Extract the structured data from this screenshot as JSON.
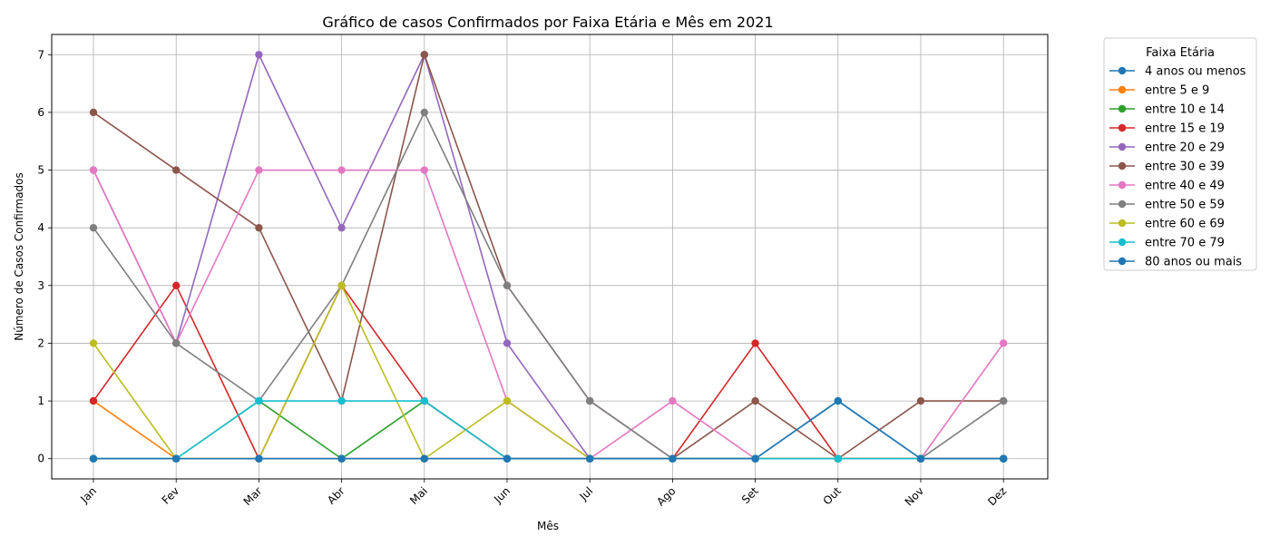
{
  "chart_data": {
    "type": "line",
    "title": "Gráfico de casos Confirmados por Faixa Etária e Mês em 2021",
    "xlabel": "Mês",
    "ylabel": "Número de Casos Confirmados",
    "ylim": [
      -0.35,
      7.35
    ],
    "yticks": [
      "0",
      "1",
      "2",
      "3",
      "4",
      "5",
      "6",
      "7"
    ],
    "grid": true,
    "legend_title": "Faixa Etária",
    "legend_position": "outside-top-right",
    "categories": [
      "Jan",
      "Fev",
      "Mar",
      "Abr",
      "Mai",
      "Jun",
      "Jul",
      "Ago",
      "Set",
      "Out",
      "Nov",
      "Dez"
    ],
    "series": [
      {
        "name": "4 anos ou menos",
        "color": "#1f77b4",
        "values": [
          0,
          0,
          0,
          0,
          0,
          0,
          0,
          0,
          0,
          1,
          0,
          0
        ]
      },
      {
        "name": "entre 5 e 9",
        "color": "#ff7f0e",
        "values": [
          1,
          0,
          0,
          0,
          0,
          0,
          0,
          0,
          0,
          0,
          0,
          0
        ]
      },
      {
        "name": "entre 10 e 14",
        "color": "#2ca02c",
        "values": [
          0,
          0,
          1,
          0,
          1,
          0,
          0,
          0,
          0,
          0,
          0,
          0
        ]
      },
      {
        "name": "entre 15 e 19",
        "color": "#d62728",
        "values": [
          1,
          3,
          0,
          3,
          1,
          0,
          0,
          0,
          2,
          0,
          0,
          0
        ]
      },
      {
        "name": "entre 20 e 29",
        "color": "#9467bd",
        "values": [
          5,
          2,
          7,
          4,
          7,
          2,
          0,
          0,
          0,
          0,
          0,
          0
        ]
      },
      {
        "name": "entre 30 e 39",
        "color": "#8c564b",
        "values": [
          6,
          5,
          4,
          1,
          7,
          3,
          1,
          0,
          1,
          0,
          1,
          1
        ]
      },
      {
        "name": "entre 40 e 49",
        "color": "#e377c2",
        "values": [
          5,
          2,
          5,
          5,
          5,
          1,
          0,
          1,
          0,
          0,
          0,
          2
        ]
      },
      {
        "name": "entre 50 e 59",
        "color": "#7f7f7f",
        "values": [
          4,
          2,
          1,
          3,
          6,
          3,
          1,
          0,
          0,
          0,
          0,
          1
        ]
      },
      {
        "name": "entre 60 e 69",
        "color": "#bcbd22",
        "values": [
          2,
          0,
          0,
          3,
          0,
          1,
          0,
          0,
          0,
          0,
          0,
          0
        ]
      },
      {
        "name": "entre 70 e 79",
        "color": "#17becf",
        "values": [
          0,
          0,
          1,
          1,
          1,
          0,
          0,
          0,
          0,
          0,
          0,
          0
        ]
      },
      {
        "name": "80 anos ou mais",
        "color": "#1f77b4",
        "values": [
          0,
          0,
          0,
          0,
          0,
          0,
          0,
          0,
          0,
          1,
          0,
          0
        ]
      }
    ]
  }
}
